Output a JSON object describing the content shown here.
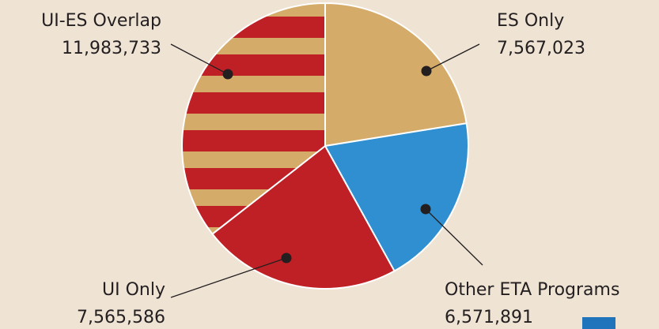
{
  "chart_data": {
    "type": "pie",
    "title": "",
    "slices": [
      {
        "label": "ES Only",
        "value": 7567023,
        "value_text": "7,567,023",
        "color": "#d4ab68"
      },
      {
        "label": "Other ETA Programs",
        "value": 6571891,
        "value_text": "6,571,891",
        "color": "#2f8fd0"
      },
      {
        "label": "UI Only",
        "value": 7565586,
        "value_text": "7,565,586",
        "color": "#bf2026"
      },
      {
        "label": "UI-ES Overlap",
        "value": 11983733,
        "value_text": "11,983,733",
        "color": "#bf2026",
        "stripe_color": "#d4ab68",
        "pattern": "horizontal-stripes"
      }
    ],
    "start_angle_deg": 0,
    "direction": "clockwise",
    "legend": "none",
    "colors": {
      "background": "#efe3d4",
      "outline": "#ffffff",
      "text": "#231f20",
      "corner_swatch": "#1f74bb"
    }
  }
}
